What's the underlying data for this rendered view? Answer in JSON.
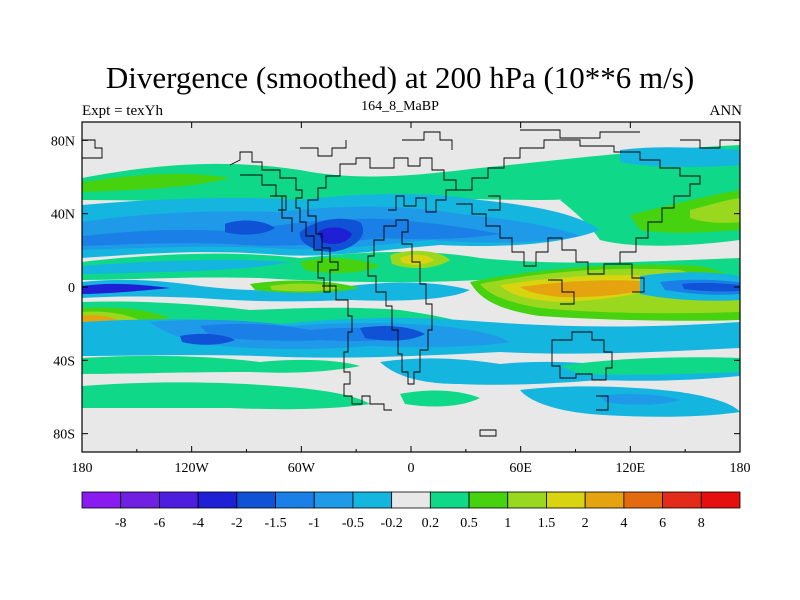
{
  "title": "Divergence (smoothed) at 200 hPa (10**6 m/s)",
  "left_label": "Expt = texYh",
  "center_label": "164_8_MaBP",
  "right_label": "ANN",
  "chart_data": {
    "type": "heatmap",
    "title": "Divergence (smoothed) at 200 hPa (10**6 m/s)",
    "x_ticks": [
      {
        "value": -180,
        "label": "180"
      },
      {
        "value": -120,
        "label": "120W"
      },
      {
        "value": -60,
        "label": "60W"
      },
      {
        "value": 0,
        "label": "0"
      },
      {
        "value": 60,
        "label": "60E"
      },
      {
        "value": 120,
        "label": "120E"
      },
      {
        "value": 180,
        "label": "180"
      }
    ],
    "y_ticks": [
      {
        "value": 80,
        "label": "80N"
      },
      {
        "value": 40,
        "label": "40N"
      },
      {
        "value": 0,
        "label": "0"
      },
      {
        "value": -40,
        "label": "40S"
      },
      {
        "value": -80,
        "label": "80S"
      }
    ],
    "xlim": [
      -180,
      180
    ],
    "ylim": [
      -90,
      90
    ],
    "colorbar": {
      "levels": [
        "-8",
        "-6",
        "-4",
        "-2",
        "-1.5",
        "-1",
        "-0.5",
        "-0.2",
        "0.2",
        "0.5",
        "1",
        "1.5",
        "2",
        "4",
        "6",
        "8"
      ],
      "colors": [
        "#8a1bf0",
        "#7020e0",
        "#4d1ee0",
        "#1f1fd6",
        "#0f52d6",
        "#1a7fe6",
        "#1e9ae8",
        "#14b6e0",
        "#e8e8e8",
        "#0fd888",
        "#46d20f",
        "#9ad81f",
        "#d8d40f",
        "#e5a40f",
        "#e46a0f",
        "#e42a18",
        "#e60f0f"
      ]
    },
    "regions": [
      {
        "level": "0.2 to 0.5",
        "lon": [
          -180,
          180
        ],
        "lat": [
          -65,
          65
        ],
        "color": "#0fd888"
      },
      {
        "level": "-1.5 to -1",
        "lon": [
          -95,
          0
        ],
        "lat": [
          10,
          40
        ],
        "color": "#1a7fe6"
      },
      {
        "level": "-2 to -1.5",
        "lon": [
          -45,
          -25
        ],
        "lat": [
          18,
          32
        ],
        "color": "#0f52d6"
      },
      {
        "level": "-1 to -0.5",
        "lon": [
          -180,
          180
        ],
        "lat": [
          -40,
          -20
        ],
        "color": "#1e9ae8"
      },
      {
        "level": "1 to 1.5",
        "lon": [
          30,
          180
        ],
        "lat": [
          -10,
          10
        ],
        "color": "#9ad81f"
      },
      {
        "level": "2 to 4",
        "lon": [
          40,
          160
        ],
        "lat": [
          -5,
          10
        ],
        "color": "#e5a40f"
      },
      {
        "level": "-2 to -1.5",
        "lon": [
          145,
          180
        ],
        "lat": [
          -5,
          5
        ],
        "color": "#0f52d6"
      }
    ]
  }
}
